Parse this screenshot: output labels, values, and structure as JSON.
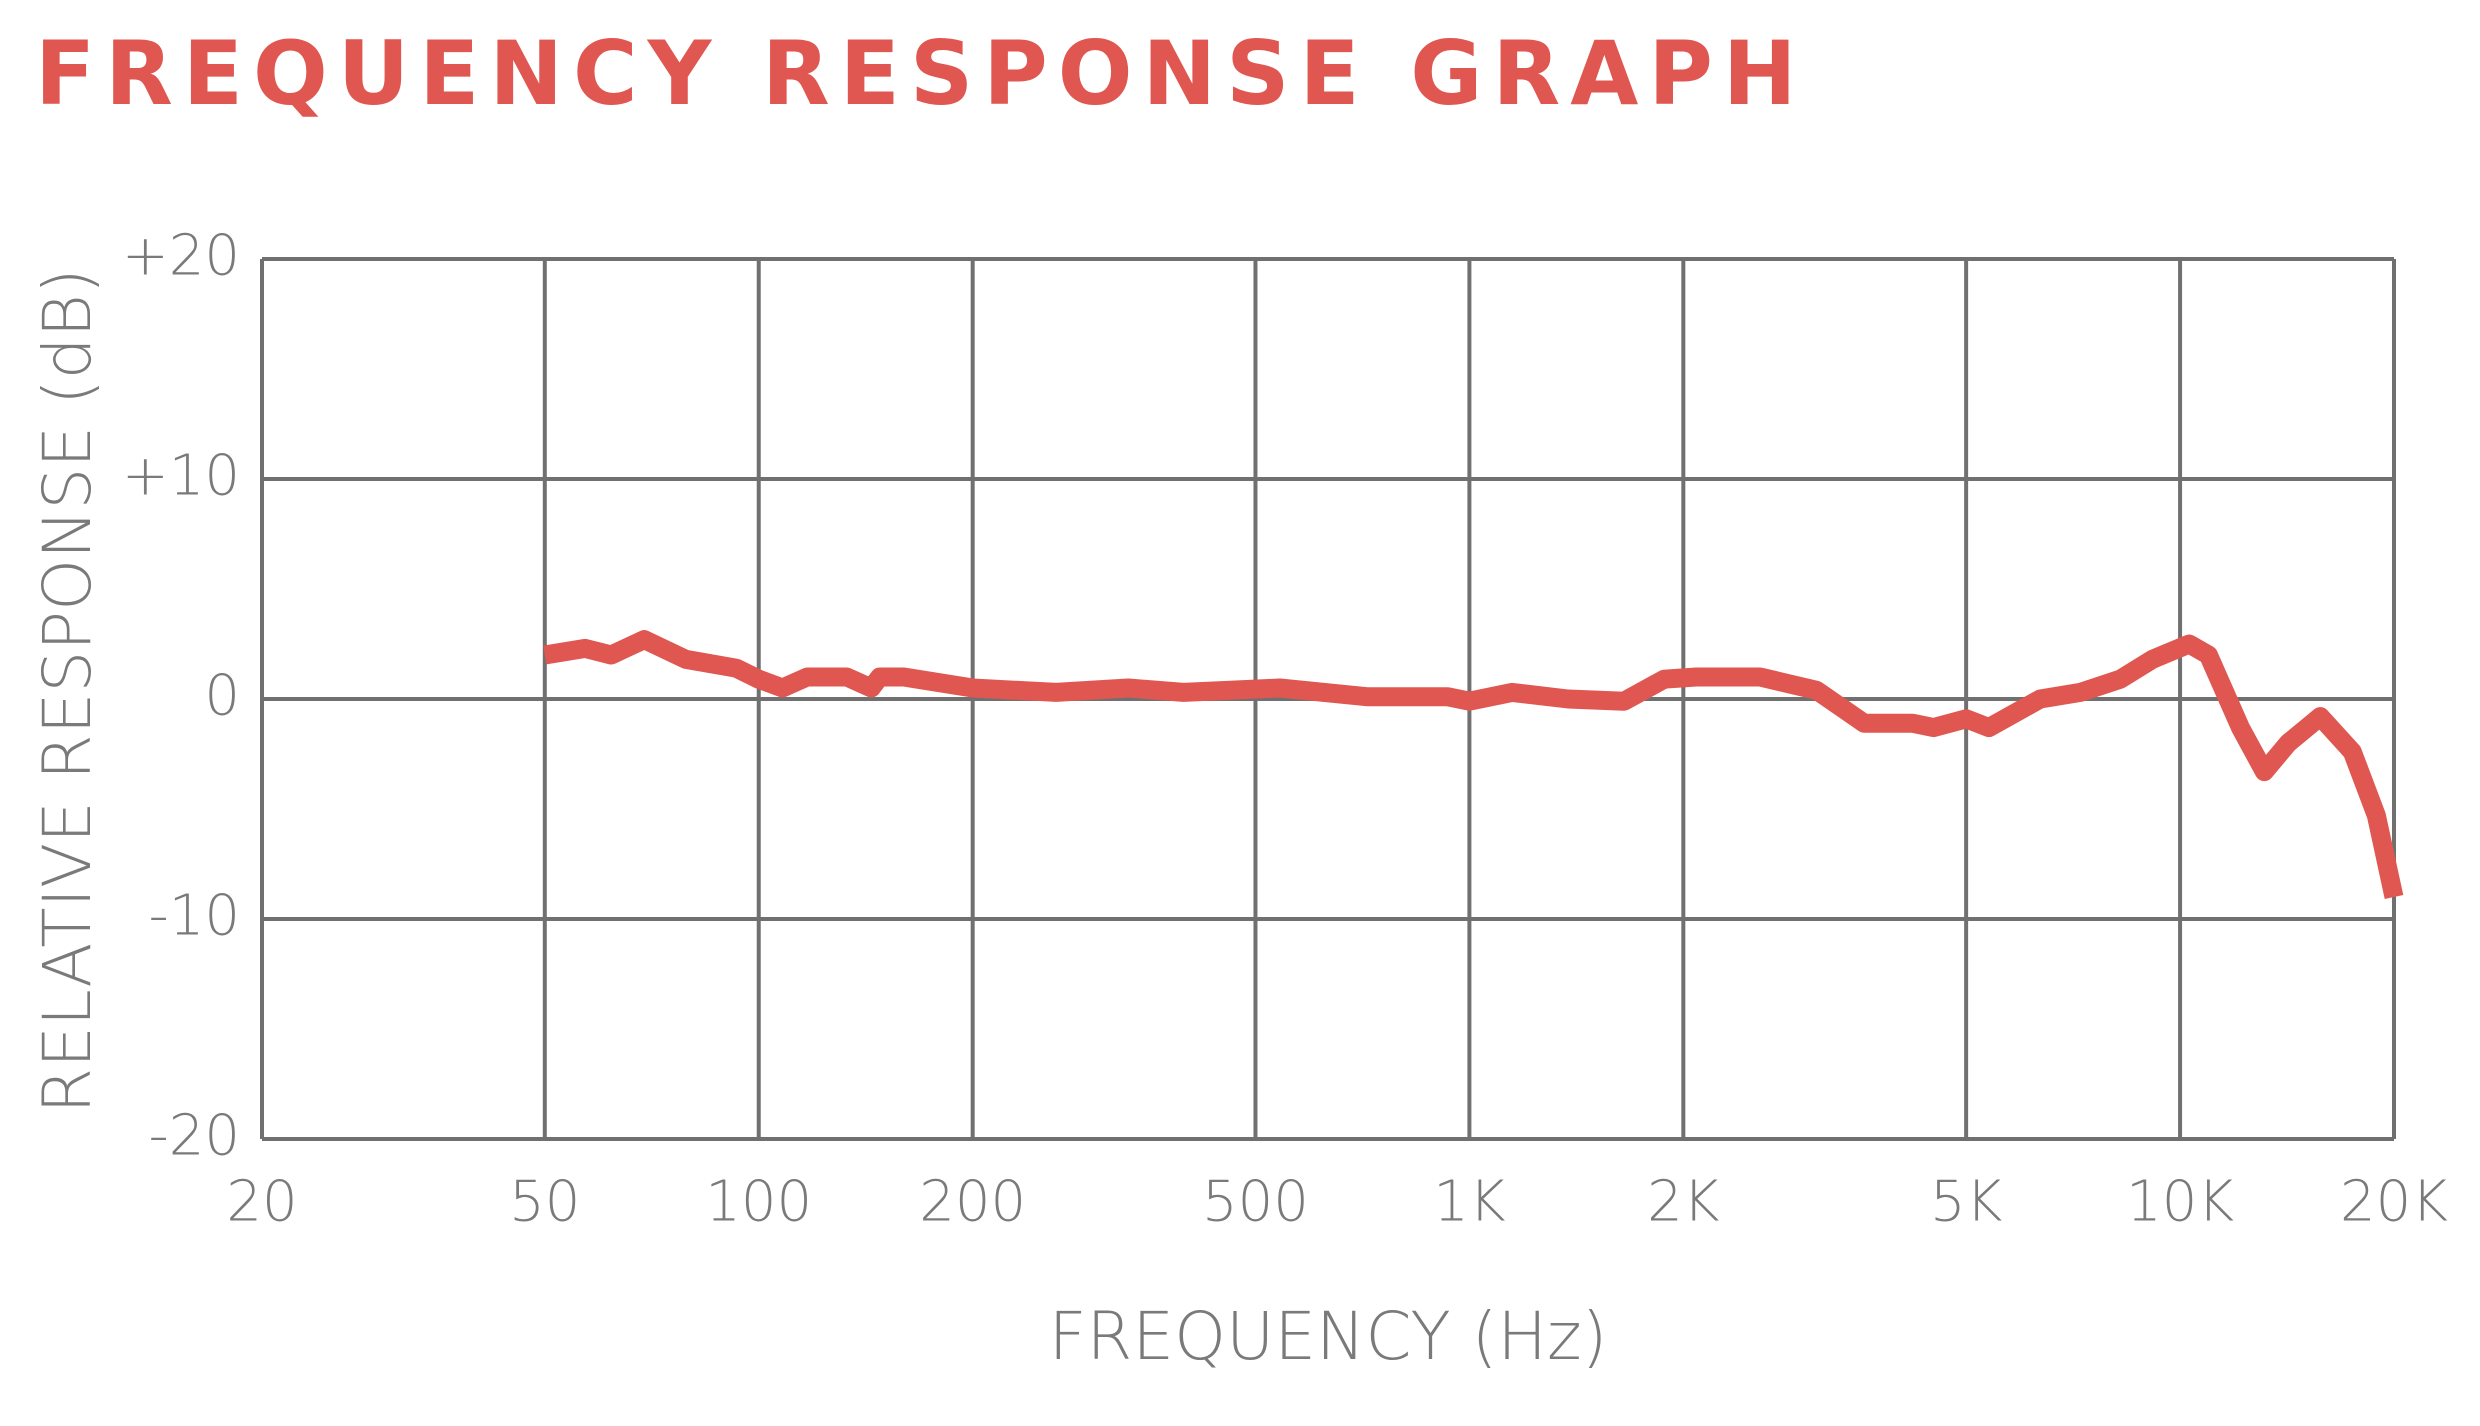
{
  "chart_data": {
    "type": "line",
    "title": "FREQUENCY RESPONSE GRAPH",
    "x_label": "FREQUENCY (Hz)",
    "y_label": "RELATIVE RESPONSE (dB)",
    "xscale": "log",
    "grid": true,
    "xlim": [
      20,
      20000
    ],
    "ylim": [
      -20,
      20
    ],
    "xticks": [
      20,
      50,
      100,
      200,
      500,
      {
        "value": 1000,
        "label": "1K"
      },
      {
        "value": 2000,
        "label": "2K"
      },
      {
        "value": 5000,
        "label": "5K"
      },
      {
        "value": 10000,
        "label": "10K"
      },
      {
        "value": 20000,
        "label": "20K"
      }
    ],
    "yticks": [
      {
        "value": 20,
        "label": "+20"
      },
      {
        "value": 10,
        "label": "+10"
      },
      0,
      -10,
      -20
    ],
    "series": [
      {
        "color": "#e05650",
        "x": [
          50,
          57,
          62,
          69,
          79,
          93,
          100,
          108,
          117,
          133,
          144,
          148,
          160,
          200,
          262,
          331,
          396,
          541,
          720,
          933,
          1000,
          1148,
          1377,
          1651,
          1880,
          2085,
          2565,
          3077,
          3592,
          4199,
          4500,
          5000,
          5384,
          6357,
          7240,
          8240,
          9141,
          10300,
          10960,
          12160,
          13140,
          14200,
          15750,
          17470,
          18890,
          20000
        ],
        "values": [
          2.0,
          2.3,
          2.0,
          2.7,
          1.8,
          1.4,
          0.9,
          0.5,
          1.0,
          1.0,
          0.5,
          1.0,
          1.0,
          0.5,
          0.3,
          0.5,
          0.3,
          0.5,
          0.1,
          0.1,
          -0.1,
          0.3,
          0,
          -0.1,
          0.9,
          1.0,
          1.0,
          0.4,
          -1.1,
          -1.1,
          -1.3,
          -0.9,
          -1.3,
          0,
          0.3,
          0.9,
          1.8,
          2.5,
          2.0,
          -1.3,
          -3.3,
          -2.0,
          -0.8,
          -2.4,
          -5.3,
          -9.0
        ]
      }
    ]
  }
}
